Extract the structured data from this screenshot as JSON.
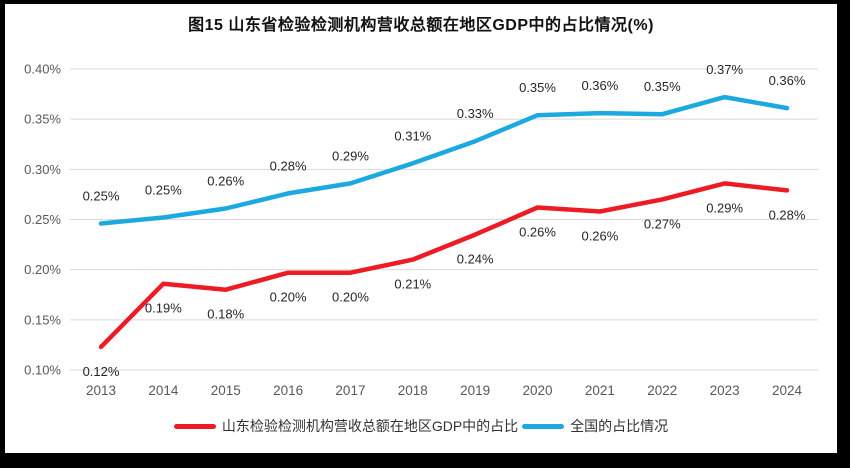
{
  "title": "图15  山东省检验检测机构营收总额在地区GDP中的占比情况(%)",
  "colors": {
    "shandong_line": "#ED1C24",
    "national_line": "#1CA9E0",
    "gridline": "#D9D9D9",
    "axis_text": "#595959",
    "data_label_text": "#262626",
    "frame_border": "#000000",
    "background": "#FFFFFF"
  },
  "chart_data": {
    "type": "line",
    "title": "图15  山东省检验检测机构营收总额在地区GDP中的占比情况(%)",
    "x": [
      "2013",
      "2014",
      "2015",
      "2016",
      "2017",
      "2018",
      "2019",
      "2020",
      "2021",
      "2022",
      "2023",
      "2024"
    ],
    "series": [
      {
        "name": "山东检验检测机构营收总额在地区GDP中的占比",
        "color_key": "shandong_line",
        "label_side": "below",
        "values": [
          0.123,
          0.186,
          0.18,
          0.197,
          0.197,
          0.21,
          0.235,
          0.262,
          0.258,
          0.27,
          0.286,
          0.279
        ],
        "labels": [
          "0.12%",
          "0.19%",
          "0.18%",
          "0.20%",
          "0.20%",
          "0.21%",
          "0.24%",
          "0.26%",
          "0.26%",
          "0.27%",
          "0.29%",
          "0.28%"
        ]
      },
      {
        "name": "全国的占比情况",
        "color_key": "national_line",
        "label_side": "above",
        "values": [
          0.246,
          0.252,
          0.261,
          0.276,
          0.286,
          0.306,
          0.328,
          0.354,
          0.356,
          0.355,
          0.372,
          0.361
        ],
        "labels": [
          "0.25%",
          "0.25%",
          "0.26%",
          "0.28%",
          "0.29%",
          "0.31%",
          "0.33%",
          "0.35%",
          "0.36%",
          "0.35%",
          "0.37%",
          "0.36%"
        ]
      }
    ],
    "ylim": [
      0.1,
      0.4
    ],
    "ytick_step": 0.05,
    "ytick_labels": [
      "0.10%",
      "0.15%",
      "0.20%",
      "0.25%",
      "0.30%",
      "0.35%",
      "0.40%"
    ],
    "xlabel": "",
    "ylabel": "",
    "grid": true,
    "legend_position": "bottom"
  },
  "legend": {
    "items": [
      {
        "label": "山东检验检测机构营收总额在地区GDP中的占比",
        "color_key": "shandong_line"
      },
      {
        "label": "全国的占比情况",
        "color_key": "national_line"
      }
    ]
  }
}
